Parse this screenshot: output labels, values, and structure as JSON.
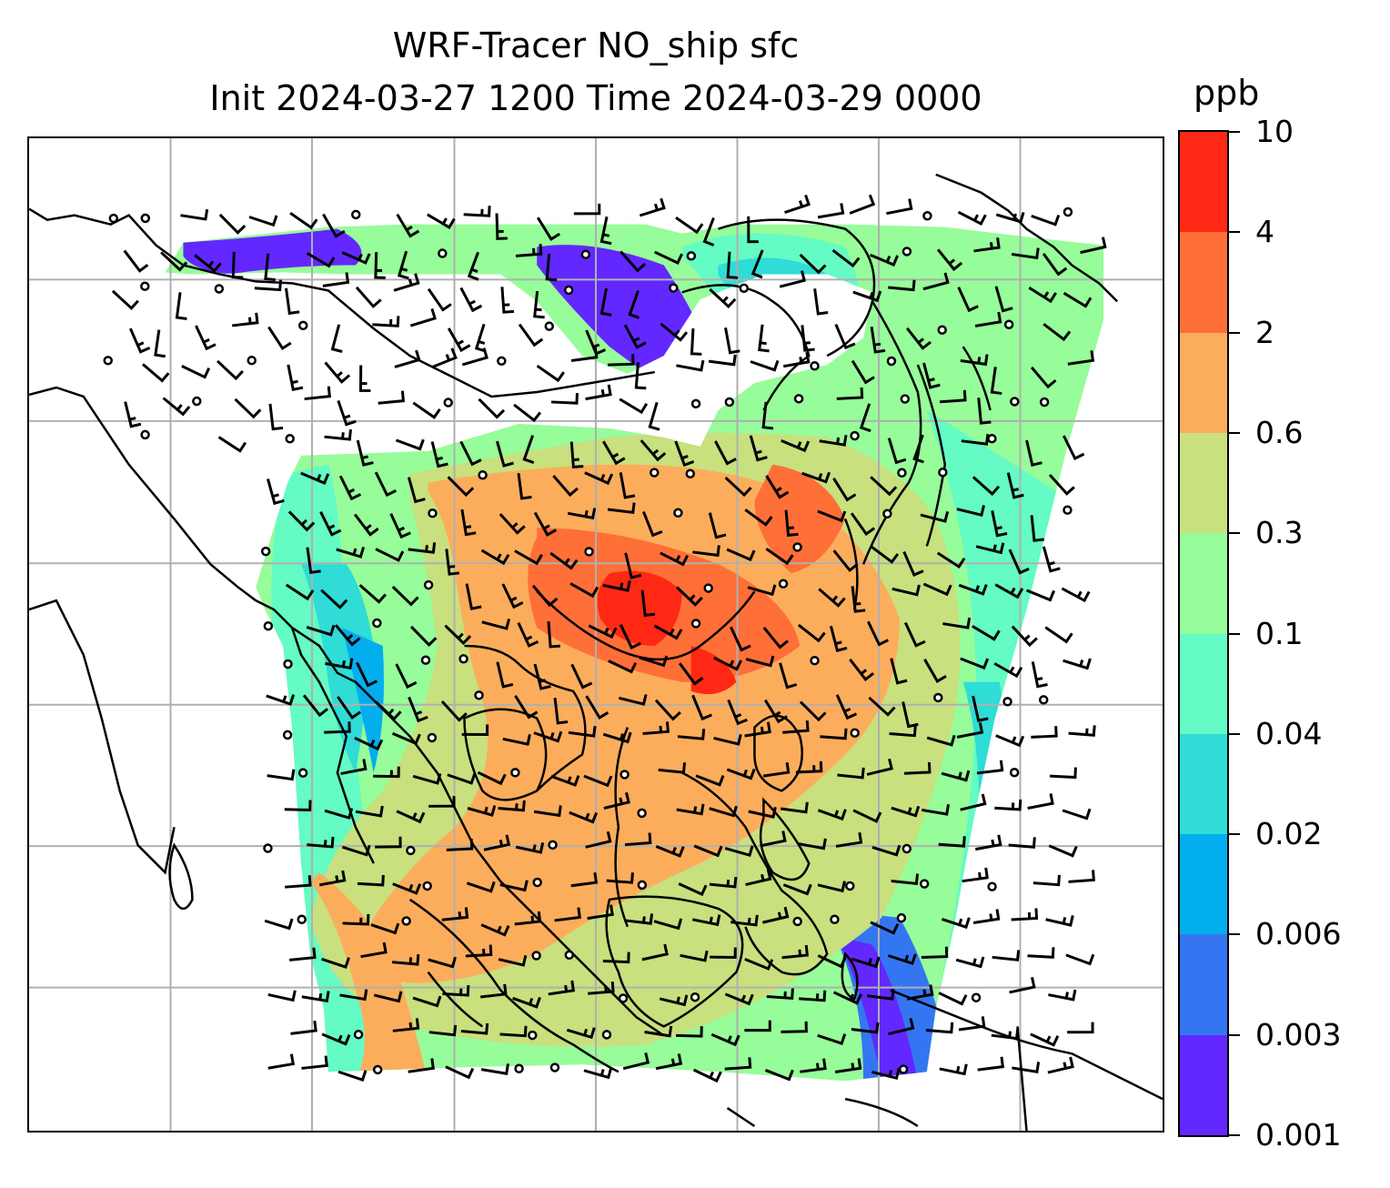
{
  "title": {
    "line1": "WRF-Tracer NO_ship sfc",
    "line2": "Init 2024-03-27 1200 Time 2024-03-29 0000"
  },
  "colorbar": {
    "unit": "ppb",
    "tick_labels": [
      "10",
      "4",
      "2",
      "0.6",
      "0.3",
      "0.1",
      "0.04",
      "0.02",
      "0.006",
      "0.003",
      "0.001"
    ],
    "bands_bottom_to_top": [
      {
        "range": "0.001-0.003",
        "color": "#6228ff"
      },
      {
        "range": "0.003-0.006",
        "color": "#3476f2"
      },
      {
        "range": "0.006-0.02",
        "color": "#03aeee"
      },
      {
        "range": "0.02-0.04",
        "color": "#2fdcd6"
      },
      {
        "range": "0.04-0.1",
        "color": "#64fbc4"
      },
      {
        "range": "0.1-0.3",
        "color": "#97fc9a"
      },
      {
        "range": "0.3-0.6",
        "color": "#c8e07e"
      },
      {
        "range": "0.6-2",
        "color": "#fcad5c"
      },
      {
        "range": "2-4",
        "color": "#ff6f38"
      },
      {
        "range": "4-10",
        "color": "#ff2814"
      }
    ]
  },
  "map": {
    "field": "NO_ship surface concentration",
    "overlay": "wind barbs and calm circles",
    "gridlines": true,
    "coastlines": true,
    "gridline_color": "#b0b0b0"
  }
}
